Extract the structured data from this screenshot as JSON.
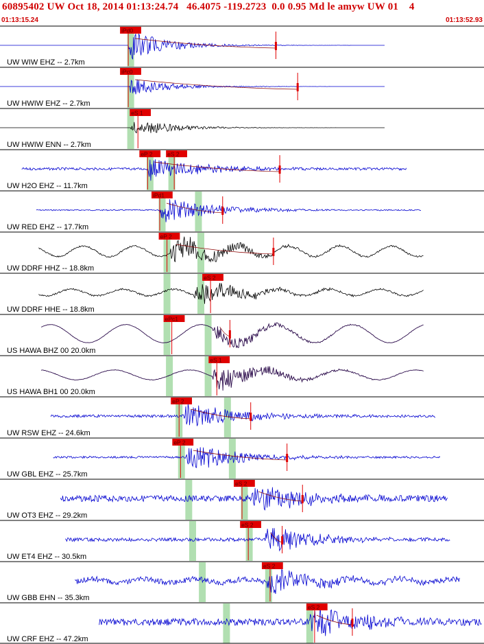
{
  "header": {
    "title": "60895402 UW Oct 18, 2014 01:13:24.74   46.4075 -119.2723  0.0 0.95 Md le amyw UW 01    4",
    "start_time": "01:13:15.24",
    "end_time": "01:13:52.93"
  },
  "colors": {
    "blue": "#0000d0",
    "black": "#000000",
    "purple": "#2a0a4a",
    "pick": "#e00000",
    "band": "#a8dca8",
    "title": "#d00000"
  },
  "chart_data": {
    "type": "seismogram",
    "time_range": [
      "01:13:15.24",
      "01:13:52.93"
    ],
    "traces": [
      {
        "label": "UW WIW EHZ -- 2.7km",
        "color": "blue",
        "style": "burst",
        "start": 0.0,
        "end": 0.795,
        "onset": 0.265,
        "amp": 0.9,
        "noise": 0.0,
        "long_period": 0,
        "pick": "iPd0",
        "pick_pos": 0.265,
        "secondary": "",
        "sec_pos": 0,
        "marker_pos": 0.57,
        "band1": 0.27,
        "band2": 0
      },
      {
        "label": "UW HWIW EHZ -- 2.7km",
        "color": "blue",
        "style": "burst",
        "start": 0.0,
        "end": 0.795,
        "onset": 0.265,
        "amp": 0.55,
        "noise": 0.0,
        "long_period": 0,
        "pick": "iPc0",
        "pick_pos": 0.265,
        "secondary": "",
        "sec_pos": 0,
        "marker_pos": 0.615,
        "band1": 0.27,
        "band2": 0
      },
      {
        "label": "UW HWIW ENN -- 2.7km",
        "color": "black",
        "style": "burst",
        "start": 0.0,
        "end": 0.795,
        "onset": 0.27,
        "amp": 0.55,
        "noise": 0.0,
        "long_period": 0,
        "pick": "eS 1",
        "pick_pos": 0.285,
        "secondary": "",
        "sec_pos": 0,
        "marker_pos": 0,
        "band1": 0.27,
        "band2": 0
      },
      {
        "label": "UW H2O EHZ -- 11.7km",
        "color": "blue",
        "style": "noisy",
        "start": 0.045,
        "end": 0.84,
        "onset": 0.305,
        "amp": 0.75,
        "noise": 0.18,
        "long_period": 0,
        "pick": "eP 2",
        "pick_pos": 0.305,
        "secondary": "eS 2",
        "sec_pos": 0.36,
        "marker_pos": 0.578,
        "band1": 0.31,
        "band2": 0.355
      },
      {
        "label": "UW RED EHZ -- 17.7km",
        "color": "blue",
        "style": "noisy",
        "start": 0.075,
        "end": 0.87,
        "onset": 0.33,
        "amp": 0.85,
        "noise": 0.08,
        "long_period": 0,
        "pick": "iPd1",
        "pick_pos": 0.33,
        "secondary": "",
        "sec_pos": 0,
        "marker_pos": 0.46,
        "band1": 0.335,
        "band2": 0.41
      },
      {
        "label": "UW DDRF HHZ -- 18.8km",
        "color": "black",
        "style": "noisy",
        "start": 0.08,
        "end": 0.875,
        "onset": 0.35,
        "amp": 0.85,
        "noise": 0.12,
        "long_period": 0.32,
        "pick": "eP 2",
        "pick_pos": 0.345,
        "secondary": "",
        "sec_pos": 0,
        "marker_pos": 0.565,
        "band1": 0.345,
        "band2": 0.415
      },
      {
        "label": "UW DDRF HHE -- 18.8km",
        "color": "black",
        "style": "noisy",
        "start": 0.08,
        "end": 0.875,
        "onset": 0.4,
        "amp": 0.75,
        "noise": 0.12,
        "long_period": 0.2,
        "pick": "eS 2",
        "pick_pos": 0.435,
        "secondary": "",
        "sec_pos": 0,
        "marker_pos": 0,
        "band1": 0.345,
        "band2": 0.415
      },
      {
        "label": "US HAWA BHZ 00 20.0km",
        "color": "purple",
        "style": "wave",
        "start": 0.085,
        "end": 0.875,
        "onset": 0.44,
        "amp": 0.5,
        "noise": 0.03,
        "long_period": 0.55,
        "pick": "ePc1",
        "pick_pos": 0.355,
        "secondary": "",
        "sec_pos": 0,
        "marker_pos": 0.475,
        "band1": 0.345,
        "band2": 0.43
      },
      {
        "label": "US HAWA BH1 00 20.0km",
        "color": "purple",
        "style": "wave",
        "start": 0.085,
        "end": 0.875,
        "onset": 0.44,
        "amp": 0.75,
        "noise": 0.04,
        "long_period": 0.3,
        "pick": "eS 1",
        "pick_pos": 0.448,
        "secondary": "",
        "sec_pos": 0,
        "marker_pos": 0,
        "band1": 0.35,
        "band2": 0.43
      },
      {
        "label": "UW RSW EHZ -- 24.6km",
        "color": "blue",
        "style": "noisy",
        "start": 0.105,
        "end": 0.9,
        "onset": 0.38,
        "amp": 0.85,
        "noise": 0.2,
        "long_period": 0,
        "pick": "eP 2",
        "pick_pos": 0.37,
        "secondary": "",
        "sec_pos": 0,
        "marker_pos": 0.518,
        "band1": 0.37,
        "band2": 0.47
      },
      {
        "label": "UW GBL EHZ -- 25.7km",
        "color": "blue",
        "style": "noisy",
        "start": 0.11,
        "end": 0.91,
        "onset": 0.385,
        "amp": 0.85,
        "noise": 0.15,
        "long_period": 0,
        "pick": "eP 2",
        "pick_pos": 0.373,
        "secondary": "",
        "sec_pos": 0,
        "marker_pos": 0.593,
        "band1": 0.375,
        "band2": 0.48
      },
      {
        "label": "UW OT3 EHZ -- 29.2km",
        "color": "blue",
        "style": "noisy",
        "start": 0.125,
        "end": 0.925,
        "onset": 0.52,
        "amp": 0.9,
        "noise": 0.45,
        "long_period": 0,
        "pick": "eS 2",
        "pick_pos": 0.5,
        "secondary": "",
        "sec_pos": 0,
        "marker_pos": 0.625,
        "band1": 0.39,
        "band2": 0.505
      },
      {
        "label": "UW ET4 EHZ -- 30.5km",
        "color": "blue",
        "style": "noisy",
        "start": 0.135,
        "end": 0.93,
        "onset": 0.545,
        "amp": 0.9,
        "noise": 0.25,
        "long_period": 0,
        "pick": "eS 2",
        "pick_pos": 0.513,
        "secondary": "",
        "sec_pos": 0,
        "marker_pos": 0.583,
        "band1": 0.398,
        "band2": 0.515
      },
      {
        "label": "UW GBB EHN -- 35.3km",
        "color": "blue",
        "style": "noisy",
        "start": 0.155,
        "end": 0.95,
        "onset": 0.55,
        "amp": 0.75,
        "noise": 0.4,
        "long_period": 0.12,
        "pick": "eS 2",
        "pick_pos": 0.558,
        "secondary": "",
        "sec_pos": 0,
        "marker_pos": 0,
        "band1": 0.418,
        "band2": 0.555
      },
      {
        "label": "UW CRF EHZ -- 47.2km",
        "color": "blue",
        "style": "noisy",
        "start": 0.205,
        "end": 0.995,
        "onset": 0.64,
        "amp": 0.95,
        "noise": 0.5,
        "long_period": 0,
        "pick": "eS 2",
        "pick_pos": 0.65,
        "secondary": "",
        "sec_pos": 0,
        "marker_pos": 0.728,
        "band1": 0.468,
        "band2": 0.64
      }
    ]
  }
}
